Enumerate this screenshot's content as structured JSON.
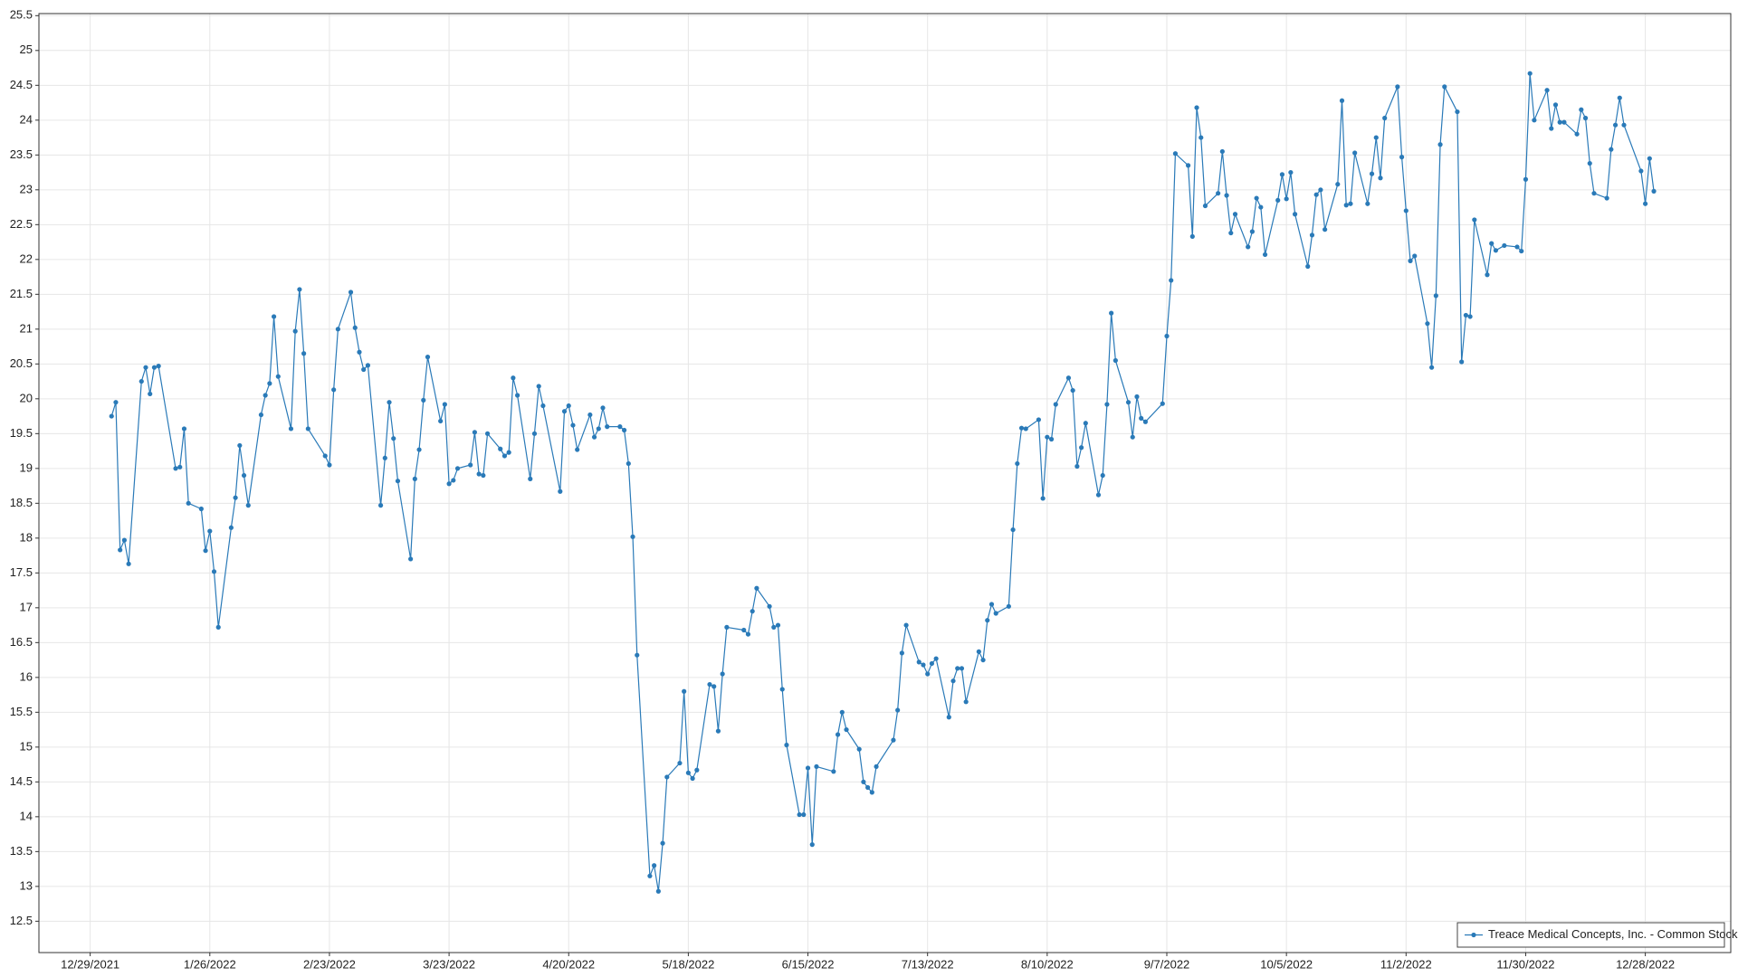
{
  "chart_data": {
    "type": "line",
    "x": [
      "2022-01-03",
      "2022-01-04",
      "2022-01-05",
      "2022-01-06",
      "2022-01-07",
      "2022-01-10",
      "2022-01-11",
      "2022-01-12",
      "2022-01-13",
      "2022-01-14",
      "2022-01-18",
      "2022-01-19",
      "2022-01-20",
      "2022-01-21",
      "2022-01-24",
      "2022-01-25",
      "2022-01-26",
      "2022-01-27",
      "2022-01-28",
      "2022-01-31",
      "2022-02-01",
      "2022-02-02",
      "2022-02-03",
      "2022-02-04",
      "2022-02-07",
      "2022-02-08",
      "2022-02-09",
      "2022-02-10",
      "2022-02-11",
      "2022-02-14",
      "2022-02-15",
      "2022-02-16",
      "2022-02-17",
      "2022-02-18",
      "2022-02-22",
      "2022-02-23",
      "2022-02-24",
      "2022-02-25",
      "2022-02-28",
      "2022-03-01",
      "2022-03-02",
      "2022-03-03",
      "2022-03-04",
      "2022-03-07",
      "2022-03-08",
      "2022-03-09",
      "2022-03-10",
      "2022-03-11",
      "2022-03-14",
      "2022-03-15",
      "2022-03-16",
      "2022-03-17",
      "2022-03-18",
      "2022-03-21",
      "2022-03-22",
      "2022-03-23",
      "2022-03-24",
      "2022-03-25",
      "2022-03-28",
      "2022-03-29",
      "2022-03-30",
      "2022-03-31",
      "2022-04-01",
      "2022-04-04",
      "2022-04-05",
      "2022-04-06",
      "2022-04-07",
      "2022-04-08",
      "2022-04-11",
      "2022-04-12",
      "2022-04-13",
      "2022-04-14",
      "2022-04-18",
      "2022-04-19",
      "2022-04-20",
      "2022-04-21",
      "2022-04-22",
      "2022-04-25",
      "2022-04-26",
      "2022-04-27",
      "2022-04-28",
      "2022-04-29",
      "2022-05-02",
      "2022-05-03",
      "2022-05-04",
      "2022-05-05",
      "2022-05-06",
      "2022-05-09",
      "2022-05-10",
      "2022-05-11",
      "2022-05-12",
      "2022-05-13",
      "2022-05-16",
      "2022-05-17",
      "2022-05-18",
      "2022-05-19",
      "2022-05-20",
      "2022-05-23",
      "2022-05-24",
      "2022-05-25",
      "2022-05-26",
      "2022-05-27",
      "2022-05-31",
      "2022-06-01",
      "2022-06-02",
      "2022-06-03",
      "2022-06-06",
      "2022-06-07",
      "2022-06-08",
      "2022-06-09",
      "2022-06-10",
      "2022-06-13",
      "2022-06-14",
      "2022-06-15",
      "2022-06-16",
      "2022-06-17",
      "2022-06-21",
      "2022-06-22",
      "2022-06-23",
      "2022-06-24",
      "2022-06-27",
      "2022-06-28",
      "2022-06-29",
      "2022-06-30",
      "2022-07-01",
      "2022-07-05",
      "2022-07-06",
      "2022-07-07",
      "2022-07-08",
      "2022-07-11",
      "2022-07-12",
      "2022-07-13",
      "2022-07-14",
      "2022-07-15",
      "2022-07-18",
      "2022-07-19",
      "2022-07-20",
      "2022-07-21",
      "2022-07-22",
      "2022-07-25",
      "2022-07-26",
      "2022-07-27",
      "2022-07-28",
      "2022-07-29",
      "2022-08-01",
      "2022-08-02",
      "2022-08-03",
      "2022-08-04",
      "2022-08-05",
      "2022-08-08",
      "2022-08-09",
      "2022-08-10",
      "2022-08-11",
      "2022-08-12",
      "2022-08-15",
      "2022-08-16",
      "2022-08-17",
      "2022-08-18",
      "2022-08-19",
      "2022-08-22",
      "2022-08-23",
      "2022-08-24",
      "2022-08-25",
      "2022-08-26",
      "2022-08-29",
      "2022-08-30",
      "2022-08-31",
      "2022-09-01",
      "2022-09-02",
      "2022-09-06",
      "2022-09-07",
      "2022-09-08",
      "2022-09-09",
      "2022-09-12",
      "2022-09-13",
      "2022-09-14",
      "2022-09-15",
      "2022-09-16",
      "2022-09-19",
      "2022-09-20",
      "2022-09-21",
      "2022-09-22",
      "2022-09-23",
      "2022-09-26",
      "2022-09-27",
      "2022-09-28",
      "2022-09-29",
      "2022-09-30",
      "2022-10-03",
      "2022-10-04",
      "2022-10-05",
      "2022-10-06",
      "2022-10-07",
      "2022-10-10",
      "2022-10-11",
      "2022-10-12",
      "2022-10-13",
      "2022-10-14",
      "2022-10-17",
      "2022-10-18",
      "2022-10-19",
      "2022-10-20",
      "2022-10-21",
      "2022-10-24",
      "2022-10-25",
      "2022-10-26",
      "2022-10-27",
      "2022-10-28",
      "2022-10-31",
      "2022-11-01",
      "2022-11-02",
      "2022-11-03",
      "2022-11-04",
      "2022-11-07",
      "2022-11-08",
      "2022-11-09",
      "2022-11-10",
      "2022-11-11",
      "2022-11-14",
      "2022-11-15",
      "2022-11-16",
      "2022-11-17",
      "2022-11-18",
      "2022-11-21",
      "2022-11-22",
      "2022-11-23",
      "2022-11-25",
      "2022-11-28",
      "2022-11-29",
      "2022-11-30",
      "2022-12-01",
      "2022-12-02",
      "2022-12-05",
      "2022-12-06",
      "2022-12-07",
      "2022-12-08",
      "2022-12-09",
      "2022-12-12",
      "2022-12-13",
      "2022-12-14",
      "2022-12-15",
      "2022-12-16",
      "2022-12-19",
      "2022-12-20",
      "2022-12-21",
      "2022-12-22",
      "2022-12-23",
      "2022-12-27",
      "2022-12-28",
      "2022-12-29",
      "2022-12-30"
    ],
    "series": [
      {
        "name": "Treace Medical Concepts, Inc. - Common Stock",
        "color": "#2a7ab8",
        "values": [
          19.75,
          19.95,
          17.83,
          17.97,
          17.63,
          20.25,
          20.45,
          20.07,
          20.45,
          20.47,
          19.0,
          19.02,
          19.57,
          18.5,
          18.42,
          17.82,
          18.1,
          17.52,
          16.72,
          18.15,
          18.58,
          19.33,
          18.9,
          18.47,
          19.77,
          20.05,
          20.22,
          21.18,
          20.32,
          19.57,
          20.97,
          21.57,
          20.65,
          19.57,
          19.18,
          19.05,
          20.13,
          21.0,
          21.53,
          21.02,
          20.67,
          20.42,
          20.48,
          18.47,
          19.15,
          19.95,
          19.43,
          18.82,
          17.7,
          18.85,
          19.27,
          19.98,
          20.6,
          19.68,
          19.92,
          18.78,
          18.83,
          19.0,
          19.05,
          19.52,
          18.92,
          18.9,
          19.5,
          19.28,
          19.18,
          19.23,
          20.3,
          20.05,
          18.85,
          19.5,
          20.18,
          19.9,
          18.67,
          19.82,
          19.9,
          19.62,
          19.27,
          19.77,
          19.45,
          19.57,
          19.87,
          19.6,
          19.6,
          19.55,
          19.07,
          18.02,
          16.32,
          13.15,
          13.3,
          12.93,
          13.62,
          14.57,
          14.77,
          15.8,
          14.63,
          14.55,
          14.67,
          15.9,
          15.87,
          15.23,
          16.05,
          16.72,
          16.68,
          16.62,
          16.95,
          17.28,
          17.02,
          16.72,
          16.75,
          15.83,
          15.03,
          14.03,
          14.03,
          14.7,
          13.6,
          14.72,
          14.65,
          15.18,
          15.5,
          15.25,
          14.97,
          14.5,
          14.42,
          14.35,
          14.72,
          15.1,
          15.53,
          16.35,
          16.75,
          16.22,
          16.18,
          16.05,
          16.2,
          16.27,
          15.43,
          15.95,
          16.13,
          16.13,
          15.65,
          16.37,
          16.25,
          16.82,
          17.05,
          16.92,
          17.02,
          18.12,
          19.07,
          19.58,
          19.57,
          19.7,
          18.57,
          19.45,
          19.42,
          19.92,
          20.3,
          20.12,
          19.03,
          19.3,
          19.65,
          18.62,
          18.9,
          19.92,
          21.23,
          20.55,
          19.95,
          19.45,
          20.03,
          19.72,
          19.67,
          19.93,
          20.9,
          21.7,
          23.52,
          23.35,
          22.33,
          24.18,
          23.75,
          22.77,
          22.95,
          23.55,
          22.92,
          22.38,
          22.65,
          22.18,
          22.4,
          22.88,
          22.75,
          22.07,
          22.85,
          23.22,
          22.87,
          23.25,
          22.65,
          21.9,
          22.35,
          22.93,
          23.0,
          22.43,
          23.08,
          24.28,
          22.78,
          22.8,
          23.53,
          22.8,
          23.23,
          23.75,
          23.17,
          24.03,
          24.48,
          23.47,
          22.7,
          21.98,
          22.05,
          21.08,
          20.45,
          21.48,
          23.65,
          24.48,
          24.12,
          20.53,
          21.2,
          21.18,
          22.57,
          21.78,
          22.23,
          22.13,
          22.2,
          22.18,
          22.12,
          23.15,
          24.67,
          24.0,
          24.43,
          23.88,
          24.22,
          23.97,
          23.97,
          23.8,
          24.15,
          24.03,
          23.38,
          22.95,
          22.88,
          23.58,
          23.93,
          24.32,
          23.93,
          23.27,
          22.8,
          23.45,
          22.98
        ]
      }
    ],
    "xlim": [
      "2021-12-17",
      "2023-01-17"
    ],
    "xticks": [
      {
        "value": "2021-12-29",
        "label": "12/29/2021"
      },
      {
        "value": "2022-01-26",
        "label": "1/26/2022"
      },
      {
        "value": "2022-02-23",
        "label": "2/23/2022"
      },
      {
        "value": "2022-03-23",
        "label": "3/23/2022"
      },
      {
        "value": "2022-04-20",
        "label": "4/20/2022"
      },
      {
        "value": "2022-05-18",
        "label": "5/18/2022"
      },
      {
        "value": "2022-06-15",
        "label": "6/15/2022"
      },
      {
        "value": "2022-07-13",
        "label": "7/13/2022"
      },
      {
        "value": "2022-08-10",
        "label": "8/10/2022"
      },
      {
        "value": "2022-09-07",
        "label": "9/7/2022"
      },
      {
        "value": "2022-10-05",
        "label": "10/5/2022"
      },
      {
        "value": "2022-11-02",
        "label": "11/2/2022"
      },
      {
        "value": "2022-11-30",
        "label": "11/30/2022"
      },
      {
        "value": "2022-12-28",
        "label": "12/28/2022"
      }
    ],
    "ylim": [
      12.05,
      25.53
    ],
    "yticks": [
      12.5,
      13,
      13.5,
      14,
      14.5,
      15,
      15.5,
      16,
      16.5,
      17,
      17.5,
      18,
      18.5,
      19,
      19.5,
      20,
      20.5,
      21,
      21.5,
      22,
      22.5,
      23,
      23.5,
      24,
      24.5,
      25,
      25.5
    ],
    "grid": true,
    "legend": "lower right"
  }
}
